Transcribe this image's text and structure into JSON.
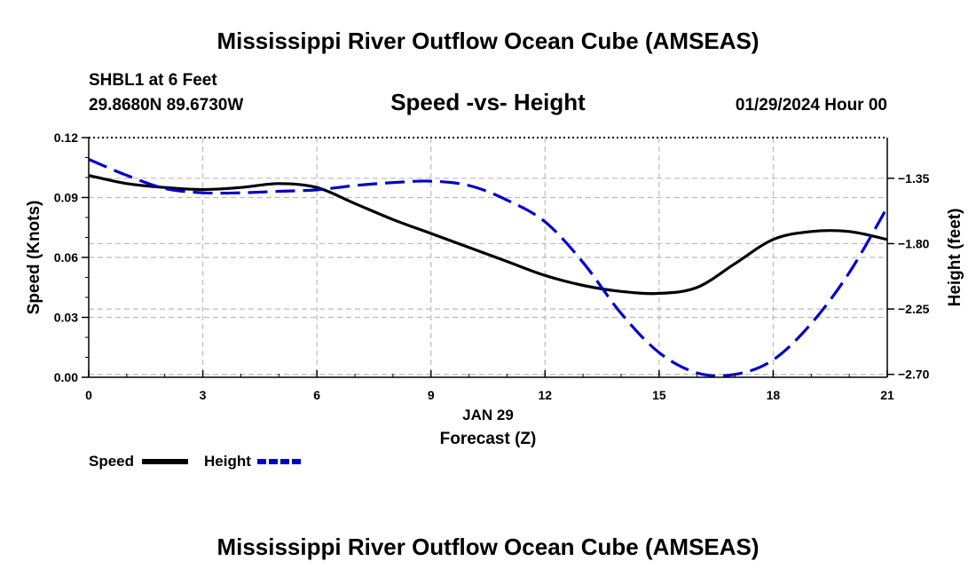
{
  "title": "Mississippi River Outflow Ocean Cube (AMSEAS)",
  "footer_title": "Mississippi River Outflow Ocean Cube (AMSEAS)",
  "station": "SHBL1 at 6 Feet",
  "coords": "29.8680N  89.6730W",
  "datetime": "01/29/2024 Hour 00",
  "colors": {
    "speed": "#000000",
    "height": "#0000cc",
    "grid": "#bbbbbb"
  },
  "chart_data": {
    "type": "line",
    "title": "Speed -vs- Height",
    "xlabel": "Forecast (Z)",
    "xlabel_date": "JAN 29",
    "ylabel": "Speed (Knots)",
    "y2label": "Height (feet)",
    "xlim": [
      0,
      21
    ],
    "ylim": [
      0,
      0.12
    ],
    "y2lim": [
      -2.72,
      -1.07
    ],
    "x_ticks": [
      0,
      3,
      6,
      9,
      12,
      15,
      18,
      21
    ],
    "x_tick_labels": [
      "0",
      "3",
      "6",
      "9",
      "12",
      "15",
      "18",
      "21"
    ],
    "y_ticks": [
      0,
      0.03,
      0.06,
      0.09,
      0.12
    ],
    "y_tick_labels": [
      "0.00",
      "0.03",
      "0.06",
      "0.09",
      "0.12"
    ],
    "y2_ticks": [
      -2.7,
      -2.25,
      -1.8,
      -1.35
    ],
    "y2_tick_labels": [
      "−2.70",
      "−2.25",
      "−1.80",
      "−1.35"
    ],
    "series": [
      {
        "name": "Speed",
        "axis": "left",
        "style": "solid",
        "x": [
          0,
          1,
          2,
          3,
          4,
          5,
          6,
          7,
          8,
          9,
          10,
          11,
          12,
          13,
          14,
          15,
          16,
          17,
          18,
          19,
          20,
          21
        ],
        "values": [
          0.101,
          0.097,
          0.095,
          0.094,
          0.095,
          0.097,
          0.095,
          0.087,
          0.079,
          0.072,
          0.065,
          0.058,
          0.051,
          0.046,
          0.043,
          0.042,
          0.045,
          0.057,
          0.069,
          0.073,
          0.073,
          0.069
        ]
      },
      {
        "name": "Height",
        "axis": "right",
        "style": "dashed",
        "x": [
          0,
          1,
          2,
          3,
          4,
          5,
          6,
          7,
          8,
          9,
          10,
          11,
          12,
          13,
          14,
          15,
          16,
          17,
          18,
          19,
          20,
          21
        ],
        "values": [
          -1.22,
          -1.33,
          -1.42,
          -1.45,
          -1.45,
          -1.44,
          -1.43,
          -1.4,
          -1.38,
          -1.37,
          -1.4,
          -1.5,
          -1.65,
          -1.93,
          -2.28,
          -2.55,
          -2.69,
          -2.7,
          -2.6,
          -2.35,
          -2.0,
          -1.55
        ]
      }
    ]
  }
}
